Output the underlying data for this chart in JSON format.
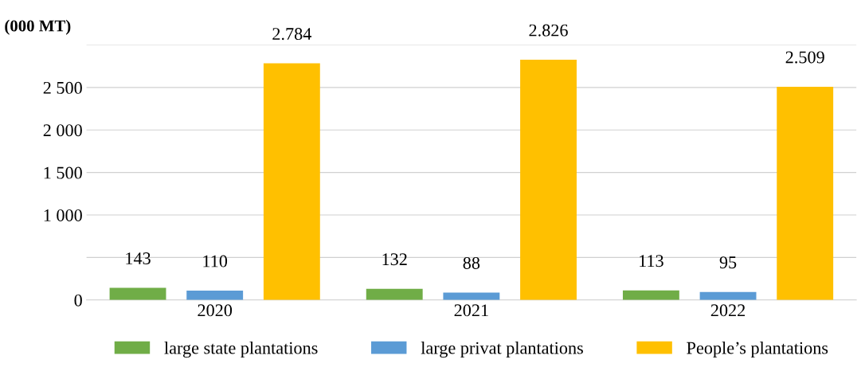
{
  "chart_data": {
    "type": "bar",
    "ylabel": "(000 MT)",
    "categories": [
      "2020",
      "2021",
      "2022"
    ],
    "series": [
      {
        "name": "large state plantations",
        "color": "#70ad47",
        "values": [
          143,
          132,
          113
        ],
        "value_labels": [
          "143",
          "132",
          "113"
        ]
      },
      {
        "name": "large privat plantations",
        "color": "#5b9bd5",
        "values": [
          110,
          88,
          95
        ],
        "value_labels": [
          "110",
          "88",
          "95"
        ]
      },
      {
        "name": "People’s plantations",
        "color": "#ffc000",
        "values": [
          2784,
          2826,
          2509
        ],
        "value_labels": [
          "2.784",
          "2.826",
          "2.509"
        ]
      }
    ],
    "ylim": [
      0,
      3000
    ],
    "yticks": [
      0,
      {
        "value": 500,
        "label": null
      },
      {
        "value": 1000,
        "label": "1 000"
      },
      {
        "value": 1500,
        "label": "1 500"
      },
      {
        "value": 2000,
        "label": "2 000"
      },
      {
        "value": 2500,
        "label": "2 500"
      },
      {
        "value": 3000,
        "label": null
      }
    ],
    "grid": "y",
    "legend": "bottom"
  }
}
